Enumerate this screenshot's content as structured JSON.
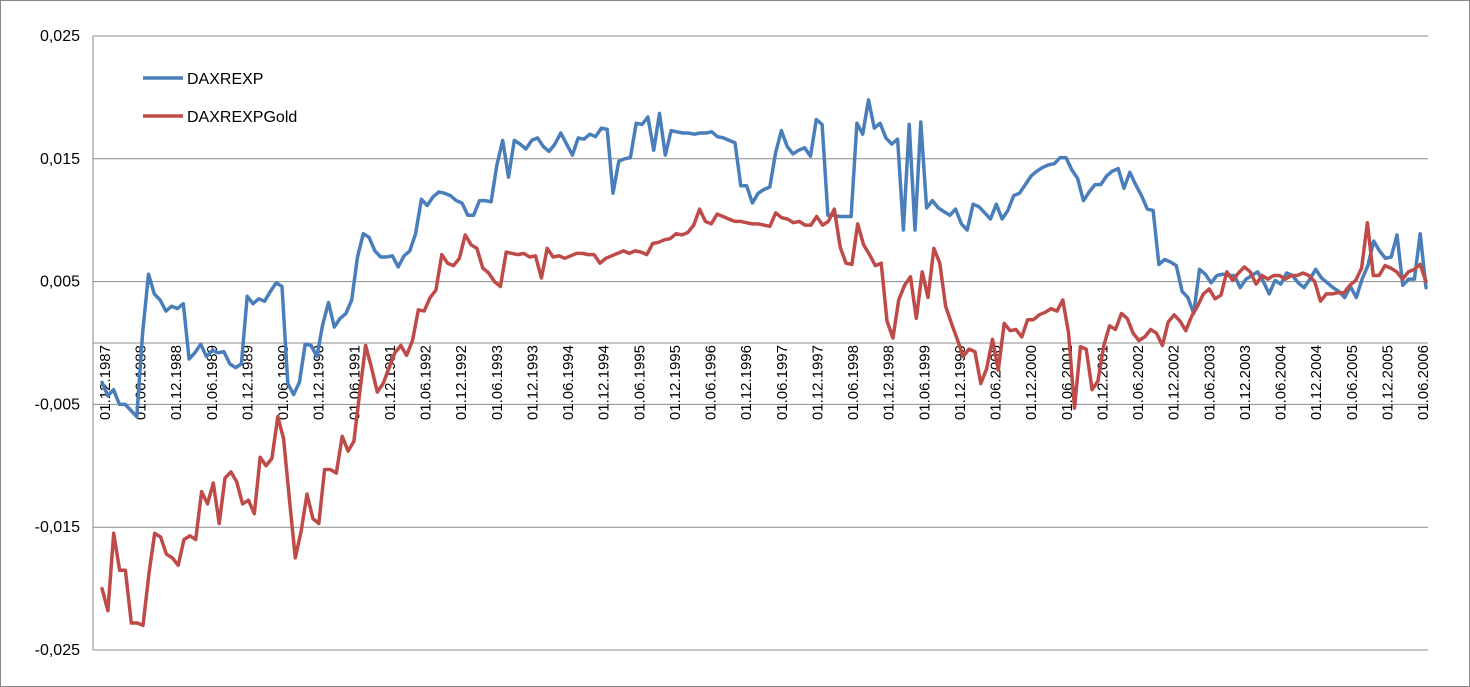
{
  "chart_data": {
    "type": "line",
    "title": "",
    "xlabel": "",
    "ylabel": "",
    "ylim": [
      -0.025,
      0.025
    ],
    "y_ticks": [
      0.025,
      0.015,
      0.005,
      -0.005,
      -0.015,
      -0.025
    ],
    "y_tick_labels": [
      "0,025",
      "0,015",
      "0,005",
      "-0,005",
      "-0,015",
      "-0,025"
    ],
    "x_tick_labels": [
      "01.12.1987",
      "01.06.1988",
      "01.12.1988",
      "01.06.1989",
      "01.12.1989",
      "01.06.1990",
      "01.12.1990",
      "01.06.1991",
      "01.12.1991",
      "01.06.1992",
      "01.12.1992",
      "01.06.1993",
      "01.12.1993",
      "01.06.1994",
      "01.12.1994",
      "01.06.1995",
      "01.12.1995",
      "01.06.1996",
      "01.12.1996",
      "01.06.1997",
      "01.12.1997",
      "01.06.1998",
      "01.12.1998",
      "01.06.1999",
      "01.12.1999",
      "01.06.2000",
      "01.12.2000",
      "01.06.2001",
      "01.12.2001",
      "01.06.2002",
      "01.12.2002",
      "01.06.2003",
      "01.12.2003",
      "01.06.2004",
      "01.12.2004",
      "01.06.2005",
      "01.12.2005",
      "01.06.2006"
    ],
    "grid": "horizontal",
    "legend_placement": "top-left",
    "series": [
      {
        "name": "DAXREXP",
        "color": "#4A7EBB",
        "values": [
          -0.0032,
          -0.0043,
          -0.0038,
          -0.005,
          -0.005,
          -0.0055,
          -0.006,
          0.0008,
          0.0056,
          0.004,
          0.0035,
          0.0026,
          0.003,
          0.0028,
          0.0032,
          -0.0013,
          -0.0008,
          -0.0001,
          -0.0011,
          -0.0006,
          -0.0008,
          -0.0007,
          -0.0017,
          -0.002,
          -0.0017,
          0.0038,
          0.0032,
          0.0036,
          0.0034,
          0.0042,
          0.0049,
          0.0046,
          -0.0033,
          -0.0042,
          -0.0032,
          -0.0001,
          -0.0002,
          -0.0011,
          0.0015,
          0.0033,
          0.0013,
          0.002,
          0.0024,
          0.0035,
          0.007,
          0.0089,
          0.0086,
          0.0075,
          0.007,
          0.007,
          0.0071,
          0.0062,
          0.0071,
          0.0075,
          0.0089,
          0.0117,
          0.0112,
          0.0119,
          0.0123,
          0.0122,
          0.012,
          0.0116,
          0.0114,
          0.0104,
          0.0104,
          0.0116,
          0.0116,
          0.0115,
          0.0145,
          0.0165,
          0.0135,
          0.0165,
          0.0162,
          0.0158,
          0.0165,
          0.0167,
          0.016,
          0.0156,
          0.0162,
          0.0171,
          0.0162,
          0.0153,
          0.0167,
          0.0166,
          0.017,
          0.0168,
          0.0175,
          0.0174,
          0.0122,
          0.0148,
          0.015,
          0.0151,
          0.0179,
          0.0178,
          0.0184,
          0.0157,
          0.0187,
          0.0153,
          0.0173,
          0.0172,
          0.0171,
          0.0171,
          0.017,
          0.0171,
          0.0171,
          0.0172,
          0.0168,
          0.0167,
          0.0165,
          0.0163,
          0.0128,
          0.0128,
          0.0114,
          0.0122,
          0.0125,
          0.0127,
          0.0155,
          0.0173,
          0.016,
          0.0154,
          0.0157,
          0.0159,
          0.0152,
          0.0182,
          0.0178,
          0.0104,
          0.0104,
          0.0103,
          0.0103,
          0.0103,
          0.0179,
          0.017,
          0.0198,
          0.0175,
          0.0179,
          0.0167,
          0.0162,
          0.0166,
          0.0092,
          0.0178,
          0.0092,
          0.018,
          0.011,
          0.0116,
          0.011,
          0.0107,
          0.0104,
          0.0109,
          0.0097,
          0.0092,
          0.0113,
          0.0111,
          0.0106,
          0.0101,
          0.0113,
          0.0101,
          0.0108,
          0.012,
          0.0122,
          0.0129,
          0.0136,
          0.014,
          0.0143,
          0.0145,
          0.0146,
          0.0151,
          0.0151,
          0.0141,
          0.0134,
          0.0116,
          0.0123,
          0.0129,
          0.0129,
          0.0136,
          0.014,
          0.0142,
          0.0126,
          0.0139,
          0.0129,
          0.012,
          0.0109,
          0.0108,
          0.0064,
          0.0068,
          0.0066,
          0.0063,
          0.0042,
          0.0037,
          0.0024,
          0.006,
          0.0056,
          0.0049,
          0.0055,
          0.0056,
          0.0055,
          0.0055,
          0.0045,
          0.0052,
          0.0055,
          0.0058,
          0.005,
          0.004,
          0.0051,
          0.0048,
          0.0057,
          0.0055,
          0.0049,
          0.0045,
          0.0052,
          0.006,
          0.0053,
          0.0049,
          0.0045,
          0.0042,
          0.0037,
          0.0046,
          0.0037,
          0.0052,
          0.0063,
          0.0083,
          0.0075,
          0.0069,
          0.007,
          0.0088,
          0.0047,
          0.0052,
          0.0052,
          0.0089,
          0.0045
        ]
      },
      {
        "name": "DAXREXPGold",
        "color": "#BE4B48",
        "values": [
          -0.02,
          -0.0218,
          -0.0155,
          -0.0185,
          -0.0185,
          -0.0228,
          -0.0228,
          -0.023,
          -0.0188,
          -0.0155,
          -0.0158,
          -0.0172,
          -0.0175,
          -0.0181,
          -0.016,
          -0.0157,
          -0.016,
          -0.0121,
          -0.0131,
          -0.0114,
          -0.0147,
          -0.011,
          -0.0105,
          -0.0113,
          -0.0131,
          -0.0128,
          -0.0139,
          -0.0093,
          -0.01,
          -0.0094,
          -0.006,
          -0.0078,
          -0.0128,
          -0.0175,
          -0.0153,
          -0.0123,
          -0.0143,
          -0.0147,
          -0.0103,
          -0.0103,
          -0.0106,
          -0.0076,
          -0.0088,
          -0.008,
          -0.004,
          -0.0002,
          -0.002,
          -0.004,
          -0.0033,
          -0.002,
          -0.0008,
          -0.0002,
          -0.001,
          0.0002,
          0.0027,
          0.0026,
          0.0037,
          0.0043,
          0.0072,
          0.0065,
          0.0063,
          0.0069,
          0.0088,
          0.008,
          0.0077,
          0.0061,
          0.0057,
          0.005,
          0.0046,
          0.0074,
          0.0073,
          0.0072,
          0.0073,
          0.007,
          0.0071,
          0.0053,
          0.0077,
          0.007,
          0.0071,
          0.0069,
          0.0071,
          0.0073,
          0.0073,
          0.0072,
          0.0072,
          0.0065,
          0.0069,
          0.0071,
          0.0073,
          0.0075,
          0.0073,
          0.0075,
          0.0074,
          0.0072,
          0.0081,
          0.0082,
          0.0084,
          0.0085,
          0.0089,
          0.0088,
          0.009,
          0.0096,
          0.0109,
          0.0099,
          0.0097,
          0.0105,
          0.0103,
          0.0101,
          0.0099,
          0.0099,
          0.0098,
          0.0097,
          0.0097,
          0.0096,
          0.0095,
          0.0106,
          0.0102,
          0.0101,
          0.0098,
          0.0099,
          0.0096,
          0.0096,
          0.0103,
          0.0096,
          0.0099,
          0.0109,
          0.0078,
          0.0065,
          0.0064,
          0.0097,
          0.008,
          0.0072,
          0.0063,
          0.0065,
          0.0018,
          0.0004,
          0.0035,
          0.0047,
          0.0054,
          0.002,
          0.0058,
          0.0037,
          0.0077,
          0.0065,
          0.003,
          0.0016,
          0.0003,
          -0.0011,
          -0.0005,
          -0.0007,
          -0.0033,
          -0.0021,
          0.0003,
          -0.0022,
          0.0016,
          0.001,
          0.0011,
          0.0005,
          0.0019,
          0.0019,
          0.0023,
          0.0025,
          0.0028,
          0.0026,
          0.0035,
          0.0008,
          -0.0053,
          -0.0003,
          -0.0005,
          -0.0038,
          -0.0031,
          -0.0002,
          0.0014,
          0.0011,
          0.0024,
          0.002,
          0.0008,
          0.0002,
          0.0005,
          0.0011,
          0.0008,
          -0.0002,
          0.0017,
          0.0023,
          0.0018,
          0.001,
          0.0022,
          0.003,
          0.004,
          0.0044,
          0.0036,
          0.0039,
          0.0058,
          0.0051,
          0.0057,
          0.0062,
          0.0058,
          0.0048,
          0.0055,
          0.0052,
          0.0055,
          0.0055,
          0.0052,
          0.0055,
          0.0055,
          0.0057,
          0.0055,
          0.005,
          0.0034,
          0.004,
          0.004,
          0.0041,
          0.0041,
          0.0047,
          0.0051,
          0.0061,
          0.0098,
          0.0055,
          0.0055,
          0.0063,
          0.0061,
          0.0058,
          0.0052,
          0.0058,
          0.006,
          0.0064,
          0.005
        ]
      }
    ]
  }
}
